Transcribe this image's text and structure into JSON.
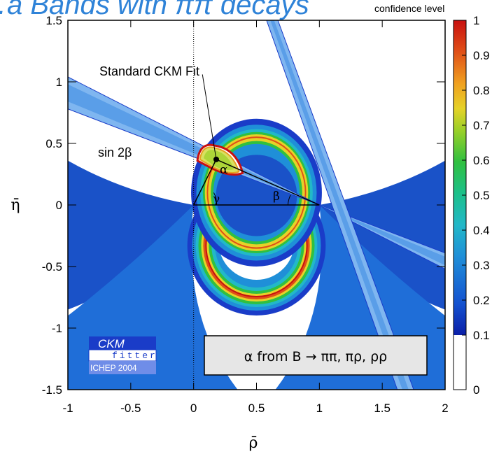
{
  "chart_data": {
    "type": "contour",
    "title": "confidence level",
    "banner_text": "…a Bands with ππ decays",
    "xlabel": "ρ̄",
    "ylabel": "η̄",
    "xlim": [
      -1,
      2
    ],
    "ylim": [
      -1.5,
      1.5
    ],
    "x_ticks": [
      "-1",
      "-0.5",
      "0",
      "0.5",
      "1",
      "1.5",
      "2"
    ],
    "x_tick_values": [
      -1,
      -0.5,
      0,
      0.5,
      1,
      1.5,
      2
    ],
    "y_ticks": [
      "1.5",
      "1",
      "0.5",
      "0",
      "-0.5",
      "-1",
      "-1.5"
    ],
    "y_tick_values": [
      1.5,
      1,
      0.5,
      0,
      -0.5,
      -1,
      -1.5
    ],
    "colorbar": {
      "label": "confidence level",
      "ticks": [
        "1",
        "0.9",
        "0.8",
        "0.7",
        "0.6",
        "0.5",
        "0.4",
        "0.3",
        "0.2",
        "0.1",
        "0"
      ],
      "tick_values": [
        1,
        0.9,
        0.8,
        0.7,
        0.6,
        0.5,
        0.4,
        0.3,
        0.2,
        0.1,
        0
      ]
    },
    "constraints": [
      {
        "name": "α from B → ππ, πρ, ρρ",
        "type": "alpha rings",
        "apex_values": [
          [
            0.0,
            0.0
          ],
          [
            1.0,
            0.0
          ]
        ]
      },
      {
        "name": "sin 2β",
        "type": "band",
        "slope_band": "through (1,0)"
      }
    ],
    "fit": {
      "label": "Standard CKM Fit",
      "rho": 0.18,
      "eta": 0.37
    },
    "annotations": [
      "Standard CKM Fit",
      "sin 2β",
      "α",
      "γ",
      "β"
    ],
    "legend_box": "α from B → ππ, πρ, ρρ",
    "logo": {
      "top": "CKM",
      "middle": "fitter",
      "bottom": "ICHEP 2004"
    },
    "grid": false
  }
}
